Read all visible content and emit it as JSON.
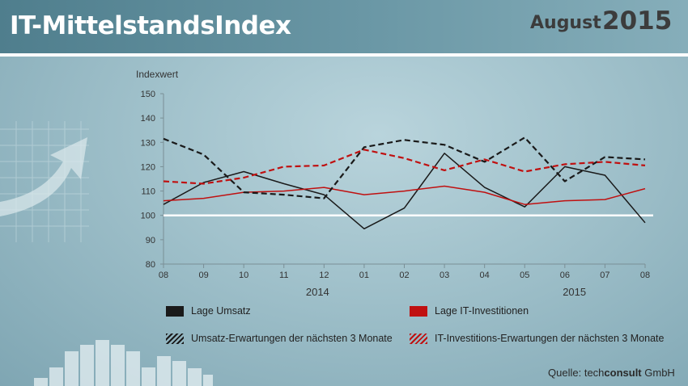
{
  "header": {
    "title": "IT-MittelstandsIndex",
    "month": "August",
    "year": "2015"
  },
  "colors": {
    "lage_umsatz": "#1a1a1a",
    "lage_it": "#c01010",
    "baseline": "#ffffff"
  },
  "chart_data": {
    "type": "line",
    "ylabel": "Indexwert",
    "ylim": [
      80,
      150
    ],
    "yticks": [
      80,
      90,
      100,
      110,
      120,
      130,
      140,
      150
    ],
    "categories": [
      "08",
      "09",
      "10",
      "11",
      "12",
      "01",
      "02",
      "03",
      "04",
      "05",
      "06",
      "07",
      "08"
    ],
    "year_labels": [
      {
        "label": "2014",
        "at_index": 4
      },
      {
        "label": "2015",
        "at_index": 10.4
      }
    ],
    "reference_line": 100,
    "series": [
      {
        "name": "Lage Umsatz",
        "style": "solid",
        "color": "#1a1a1a",
        "values": [
          104.5,
          113.5,
          118,
          113,
          108.5,
          94.5,
          103,
          125.5,
          111.5,
          103.5,
          120,
          116.5,
          97
        ]
      },
      {
        "name": "Lage IT-Investitionen",
        "style": "solid",
        "color": "#c01010",
        "values": [
          106,
          107,
          109.5,
          110,
          111.5,
          108.5,
          110,
          112,
          109.5,
          104.5,
          106,
          106.5,
          111
        ]
      },
      {
        "name": "Umsatz-Erwartungen der nächsten 3 Monate",
        "style": "dashed",
        "color": "#1a1a1a",
        "values": [
          131.5,
          125,
          109.5,
          108.5,
          107,
          128,
          131,
          129,
          122,
          132,
          114,
          124,
          123
        ]
      },
      {
        "name": "IT-Investitions-Erwartungen der nächsten 3 Monate",
        "style": "dashed",
        "color": "#c01010",
        "values": [
          114,
          113,
          115.5,
          120,
          120.5,
          127,
          123.5,
          118.5,
          123,
          118,
          121,
          122,
          120.5
        ]
      }
    ],
    "legend": [
      "Lage Umsatz",
      "Lage IT-Investitionen",
      "Umsatz-Erwartungen der nächsten 3 Monate",
      "IT-Investitions-Erwartungen der nächsten 3 Monate"
    ],
    "grid": false,
    "legend_position": "bottom"
  },
  "source": {
    "prefix": "Quelle:",
    "company_light": "tech",
    "company_bold": "consult",
    "company_suffix": " GmbH"
  }
}
